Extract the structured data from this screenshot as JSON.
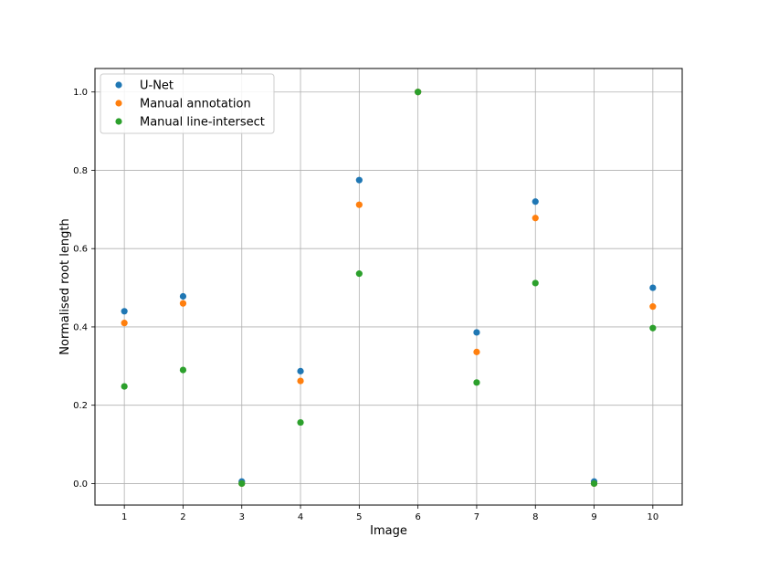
{
  "chart_data": {
    "type": "scatter",
    "title": "",
    "xlabel": "Image",
    "ylabel": "Normalised root length",
    "x": [
      1,
      2,
      3,
      4,
      5,
      6,
      7,
      8,
      9,
      10
    ],
    "x_ticks": [
      "1",
      "2",
      "3",
      "4",
      "5",
      "6",
      "7",
      "8",
      "9",
      "10"
    ],
    "y_ticks": [
      "0.0",
      "0.2",
      "0.4",
      "0.6",
      "0.8",
      "1.0"
    ],
    "xlim": [
      0.5,
      10.5
    ],
    "ylim": [
      -0.055,
      1.06
    ],
    "grid": true,
    "legend_position": "top-left",
    "series": [
      {
        "name": "U-Net",
        "color": "#1f77b4",
        "values": [
          0.44,
          0.478,
          0.005,
          0.287,
          0.775,
          1.0,
          0.386,
          0.72,
          0.005,
          0.5
        ]
      },
      {
        "name": "Manual annotation",
        "color": "#ff7f0e",
        "values": [
          0.41,
          0.46,
          0.0,
          0.262,
          0.712,
          1.0,
          0.336,
          0.678,
          0.0,
          0.452
        ]
      },
      {
        "name": "Manual line-intersect",
        "color": "#2ca02c",
        "values": [
          0.248,
          0.29,
          0.0,
          0.156,
          0.536,
          1.0,
          0.258,
          0.512,
          0.0,
          0.397
        ]
      }
    ]
  }
}
